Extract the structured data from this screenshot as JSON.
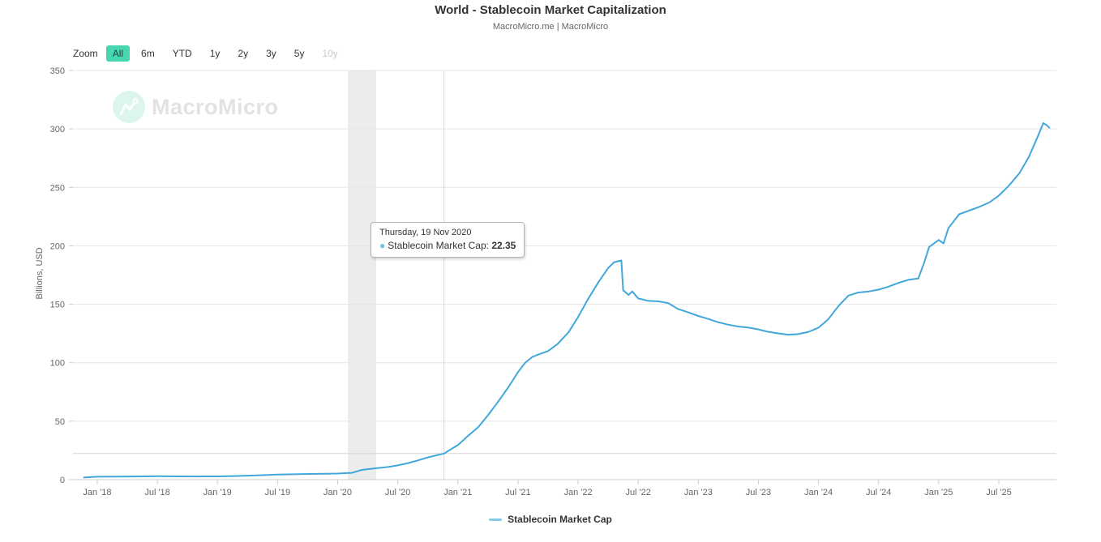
{
  "header": {
    "title": "World - Stablecoin Market Capitalization",
    "subtitle": "MacroMicro.me | MacroMicro"
  },
  "zoom_bar": {
    "label": "Zoom",
    "buttons": [
      {
        "label": "All",
        "active": true,
        "disabled": false
      },
      {
        "label": "6m",
        "active": false,
        "disabled": false
      },
      {
        "label": "YTD",
        "active": false,
        "disabled": false
      },
      {
        "label": "1y",
        "active": false,
        "disabled": false
      },
      {
        "label": "2y",
        "active": false,
        "disabled": false
      },
      {
        "label": "3y",
        "active": false,
        "disabled": false
      },
      {
        "label": "5y",
        "active": false,
        "disabled": false
      },
      {
        "label": "10y",
        "active": false,
        "disabled": true
      }
    ]
  },
  "watermark": {
    "text": "MacroMicro"
  },
  "tooltip": {
    "date_line": "Thursday, 19 Nov 2020",
    "series_label": "Stablecoin Market Cap",
    "separator": ": ",
    "value": "22.35"
  },
  "legend": {
    "items": [
      {
        "label": "Stablecoin Market Cap",
        "dash_color": "#86c9e9"
      }
    ]
  },
  "colors": {
    "line": "#41a7db",
    "grid": "#e6e6e6",
    "axis": "#cccccc",
    "axis_text": "#666666",
    "crosshair": "#d6d6d6",
    "band": "#ececec",
    "active_zoom_bg": "#46d7b0",
    "disabled_zoom_text": "#c9c9c9",
    "watermark_bubble": "#dcf6ec",
    "watermark_text": "#e2e2e2"
  },
  "chart_data": {
    "type": "line",
    "title": "World - Stablecoin Market Capitalization",
    "xlabel": "",
    "ylabel": "Billions, USD",
    "ylim": [
      0,
      350
    ],
    "y_ticks": [
      0,
      50,
      100,
      150,
      200,
      250,
      300,
      350
    ],
    "grid": true,
    "legend_position": "bottom",
    "x_range_years": [
      2017.798,
      2025.979
    ],
    "x_ticks": [
      {
        "label": "Jan '18",
        "t": 2018.0
      },
      {
        "label": "Jul '18",
        "t": 2018.5
      },
      {
        "label": "Jan '19",
        "t": 2019.0
      },
      {
        "label": "Jul '19",
        "t": 2019.5
      },
      {
        "label": "Jan '20",
        "t": 2020.0
      },
      {
        "label": "Jul '20",
        "t": 2020.5
      },
      {
        "label": "Jan '21",
        "t": 2021.0
      },
      {
        "label": "Jul '21",
        "t": 2021.5
      },
      {
        "label": "Jan '22",
        "t": 2022.0
      },
      {
        "label": "Jul '22",
        "t": 2022.5
      },
      {
        "label": "Jan '23",
        "t": 2023.0
      },
      {
        "label": "Jul '23",
        "t": 2023.5
      },
      {
        "label": "Jan '24",
        "t": 2024.0
      },
      {
        "label": "Jul '24",
        "t": 2024.5
      },
      {
        "label": "Jan '25",
        "t": 2025.0
      },
      {
        "label": "Jul '25",
        "t": 2025.5
      }
    ],
    "recession_band_years": [
      2020.085,
      2020.32
    ],
    "crosshair": {
      "t": 2020.885,
      "value": 22.35,
      "date": "2020-11-19"
    },
    "series": [
      {
        "name": "Stablecoin Market Cap",
        "color": "#41a7db",
        "points": [
          [
            2017.89,
            1.8
          ],
          [
            2018.0,
            2.5
          ],
          [
            2018.17,
            2.6
          ],
          [
            2018.33,
            2.7
          ],
          [
            2018.5,
            2.9
          ],
          [
            2018.67,
            2.8
          ],
          [
            2018.83,
            2.7
          ],
          [
            2019.0,
            2.8
          ],
          [
            2019.17,
            3.1
          ],
          [
            2019.33,
            3.6
          ],
          [
            2019.5,
            4.3
          ],
          [
            2019.67,
            4.7
          ],
          [
            2019.83,
            4.9
          ],
          [
            2020.0,
            5.2
          ],
          [
            2020.12,
            5.8
          ],
          [
            2020.2,
            8.3
          ],
          [
            2020.3,
            9.5
          ],
          [
            2020.42,
            10.8
          ],
          [
            2020.5,
            12.2
          ],
          [
            2020.58,
            14.0
          ],
          [
            2020.67,
            16.5
          ],
          [
            2020.75,
            19.0
          ],
          [
            2020.83,
            21.0
          ],
          [
            2020.885,
            22.35
          ],
          [
            2020.95,
            26.5
          ],
          [
            2021.0,
            29.5
          ],
          [
            2021.08,
            37.0
          ],
          [
            2021.17,
            45.0
          ],
          [
            2021.25,
            55.0
          ],
          [
            2021.33,
            66.0
          ],
          [
            2021.42,
            79.0
          ],
          [
            2021.5,
            92.0
          ],
          [
            2021.56,
            100.0
          ],
          [
            2021.62,
            105.0
          ],
          [
            2021.67,
            107.0
          ],
          [
            2021.75,
            110.0
          ],
          [
            2021.83,
            116.0
          ],
          [
            2021.92,
            126.0
          ],
          [
            2022.0,
            139.0
          ],
          [
            2022.08,
            154.0
          ],
          [
            2022.17,
            169.0
          ],
          [
            2022.25,
            181.0
          ],
          [
            2022.3,
            186.0
          ],
          [
            2022.36,
            187.5
          ],
          [
            2022.375,
            162.0
          ],
          [
            2022.42,
            158.0
          ],
          [
            2022.45,
            161.0
          ],
          [
            2022.5,
            155.0
          ],
          [
            2022.58,
            153.0
          ],
          [
            2022.67,
            152.5
          ],
          [
            2022.75,
            151.0
          ],
          [
            2022.83,
            146.0
          ],
          [
            2022.92,
            143.0
          ],
          [
            2023.0,
            140.0
          ],
          [
            2023.08,
            137.5
          ],
          [
            2023.17,
            134.5
          ],
          [
            2023.25,
            132.5
          ],
          [
            2023.33,
            131.0
          ],
          [
            2023.42,
            130.0
          ],
          [
            2023.5,
            128.5
          ],
          [
            2023.58,
            126.5
          ],
          [
            2023.67,
            125.0
          ],
          [
            2023.75,
            124.0
          ],
          [
            2023.83,
            124.5
          ],
          [
            2023.92,
            126.5
          ],
          [
            2024.0,
            130.0
          ],
          [
            2024.08,
            137.0
          ],
          [
            2024.17,
            149.0
          ],
          [
            2024.25,
            157.5
          ],
          [
            2024.33,
            160.0
          ],
          [
            2024.42,
            161.0
          ],
          [
            2024.5,
            162.5
          ],
          [
            2024.58,
            165.0
          ],
          [
            2024.67,
            168.5
          ],
          [
            2024.75,
            171.0
          ],
          [
            2024.83,
            172.0
          ],
          [
            2024.88,
            186.0
          ],
          [
            2024.92,
            199.0
          ],
          [
            2025.0,
            205.0
          ],
          [
            2025.04,
            202.0
          ],
          [
            2025.08,
            215.0
          ],
          [
            2025.17,
            227.0
          ],
          [
            2025.25,
            230.0
          ],
          [
            2025.33,
            233.0
          ],
          [
            2025.42,
            237.0
          ],
          [
            2025.5,
            243.0
          ],
          [
            2025.58,
            251.0
          ],
          [
            2025.67,
            262.0
          ],
          [
            2025.75,
            276.0
          ],
          [
            2025.83,
            295.0
          ],
          [
            2025.87,
            305.0
          ],
          [
            2025.9,
            303.0
          ],
          [
            2025.92,
            301.0
          ]
        ]
      }
    ]
  }
}
